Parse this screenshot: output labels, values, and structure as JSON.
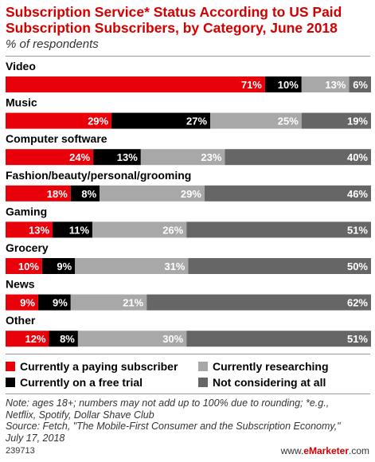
{
  "header": {
    "title_line1": "Subscription Service* Status According to US Paid",
    "title_line2": "Subscription Subscribers, by Category, June 2018",
    "subtitle": "% of respondents"
  },
  "chart_data": {
    "type": "bar",
    "orientation": "horizontal",
    "stacked": true,
    "normalized": true,
    "title": "Subscription Service* Status According to US Paid Subscription Subscribers, by Category, June 2018",
    "subtitle": "% of respondents",
    "categories": [
      "Video",
      "Music",
      "Computer software",
      "Fashion/beauty/personal/grooming",
      "Gaming",
      "Grocery",
      "News",
      "Other"
    ],
    "series": [
      {
        "name": "Currently a paying subscriber",
        "color": "#e8000b",
        "values": [
          71,
          29,
          24,
          18,
          13,
          10,
          9,
          12
        ]
      },
      {
        "name": "Currently on a free trial",
        "color": "#000000",
        "values": [
          10,
          27,
          13,
          8,
          11,
          9,
          9,
          8
        ]
      },
      {
        "name": "Currently researching",
        "color": "#a8a8a8",
        "values": [
          13,
          25,
          23,
          29,
          26,
          31,
          21,
          30
        ]
      },
      {
        "name": "Not considering at all",
        "color": "#666666",
        "values": [
          6,
          19,
          40,
          46,
          51,
          50,
          62,
          51
        ]
      }
    ],
    "value_suffix": "%",
    "legend_position": "bottom",
    "grid": false
  },
  "legend": {
    "items": [
      {
        "label": "Currently a paying subscriber",
        "color": "#e8000b"
      },
      {
        "label": "Currently researching",
        "color": "#a8a8a8"
      },
      {
        "label": "Currently on a free trial",
        "color": "#000000"
      },
      {
        "label": "Not considering at all",
        "color": "#666666"
      }
    ]
  },
  "notes": {
    "line1": "Note: ages 18+; numbers may not add up to 100% due to rounding; *e.g.,",
    "line2": "Netflix, Spotify, Dollar Shave Club",
    "line3": "Source: Fetch, \"The Mobile-First Consumer and the Subscription Economy,\"",
    "line4": "July 17, 2018"
  },
  "footer": {
    "id": "239713",
    "brand_prefix": "www.",
    "brand_name": "eMarketer",
    "brand_suffix": ".com"
  }
}
